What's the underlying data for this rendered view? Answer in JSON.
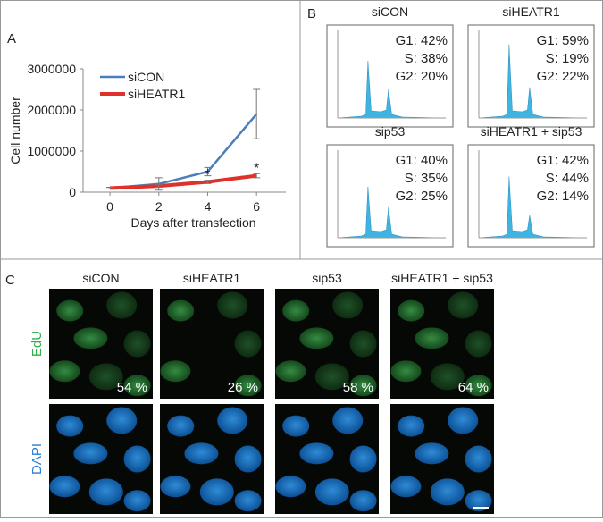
{
  "panels": {
    "a": "A",
    "b": "B",
    "c": "C"
  },
  "chart_data": {
    "type": "line",
    "x": [
      0,
      2,
      4,
      6
    ],
    "xlim": [
      -1.1,
      7.2
    ],
    "xticks": [
      0,
      2,
      4,
      6
    ],
    "xlabel": "Days after transfection",
    "ylabel": "Cell number",
    "ylim": [
      0,
      3000000
    ],
    "yticks": [
      0,
      1000000,
      2000000,
      3000000
    ],
    "legend": "upper left",
    "series": [
      {
        "name": "siCON",
        "color": "#4a7ebb",
        "values": [
          100000,
          200000,
          500000,
          1900000
        ],
        "errors": [
          20000,
          150000,
          100000,
          600000
        ]
      },
      {
        "name": "siHEATR1",
        "color": "#e0302a",
        "values": [
          100000,
          150000,
          250000,
          400000
        ],
        "errors": [
          20000,
          30000,
          40000,
          50000
        ]
      }
    ],
    "annotations": [
      {
        "text": "*",
        "x": 4
      },
      {
        "text": "*",
        "x": 6
      }
    ]
  },
  "cell_cycle": [
    {
      "title": "siCON",
      "lines": [
        "G1: 42%",
        "S: 38%",
        "G2: 20%"
      ]
    },
    {
      "title": "siHEATR1",
      "lines": [
        "G1: 59%",
        "S: 19%",
        "G2: 22%"
      ]
    },
    {
      "title": "sip53",
      "lines": [
        "G1: 40%",
        "S: 35%",
        "G2: 25%"
      ]
    },
    {
      "title": "siHEATR1 + sip53",
      "lines": [
        "G1: 42%",
        "S: 44%",
        "G2: 14%"
      ]
    }
  ],
  "imaging": {
    "conditions": [
      "siCON",
      "siHEATR1",
      "sip53",
      "siHEATR1 + sip53"
    ],
    "channels": [
      "EdU",
      "DAPI"
    ],
    "percentages": [
      "54 %",
      "26 %",
      "58 %",
      "64 %"
    ]
  }
}
